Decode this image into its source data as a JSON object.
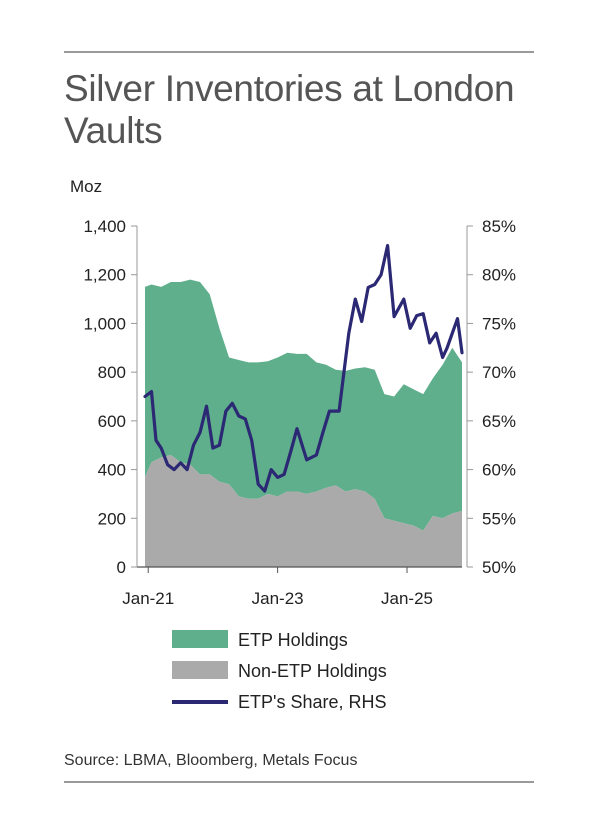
{
  "title": "Silver Inventories at London Vaults",
  "source": "Source: LBMA, Bloomberg, Metals Focus",
  "colors": {
    "etp": "#5fae8c",
    "non_etp": "#aaaaaa",
    "share": "#2b2874"
  },
  "chart_data": {
    "type": "area",
    "left_axis_unit": "Moz",
    "ylim_left": [
      0,
      1400
    ],
    "ylim_right": [
      0.5,
      0.85
    ],
    "y_ticks_left": [
      "0",
      "200",
      "400",
      "600",
      "800",
      "1,000",
      "1,200",
      "1,400"
    ],
    "y_ticks_right": [
      "50%",
      "55%",
      "60%",
      "65%",
      "70%",
      "75%",
      "80%",
      "85%"
    ],
    "x_ticks": [
      "Jan-21",
      "Jan-23",
      "Jan-25"
    ],
    "x_tick_positions": [
      2021.0,
      2023.0,
      2025.0
    ],
    "xlim": [
      2020.95,
      2025.85
    ],
    "grid": false,
    "legend_position": "bottom",
    "series": [
      {
        "name": "ETP Holdings",
        "kind": "stacked-area",
        "x": [
          2020.95,
          2021.05,
          2021.2,
          2021.35,
          2021.5,
          2021.65,
          2021.8,
          2021.95,
          2022.1,
          2022.25,
          2022.4,
          2022.55,
          2022.7,
          2022.85,
          2023.0,
          2023.15,
          2023.3,
          2023.45,
          2023.6,
          2023.75,
          2023.9,
          2024.05,
          2024.2,
          2024.35,
          2024.5,
          2024.65,
          2024.8,
          2024.95,
          2025.1,
          2025.25,
          2025.4,
          2025.55,
          2025.7,
          2025.85
        ],
        "values": [
          780,
          730,
          700,
          710,
          740,
          760,
          790,
          740,
          630,
          520,
          560,
          560,
          560,
          545,
          570,
          570,
          565,
          575,
          530,
          505,
          475,
          495,
          495,
          510,
          530,
          510,
          510,
          570,
          560,
          560,
          565,
          630,
          680,
          610
        ]
      },
      {
        "name": "Non-ETP Holdings",
        "kind": "stacked-area",
        "x": [
          2020.95,
          2021.05,
          2021.2,
          2021.35,
          2021.5,
          2021.65,
          2021.8,
          2021.95,
          2022.1,
          2022.25,
          2022.4,
          2022.55,
          2022.7,
          2022.85,
          2023.0,
          2023.15,
          2023.3,
          2023.45,
          2023.6,
          2023.75,
          2023.9,
          2024.05,
          2024.2,
          2024.35,
          2024.5,
          2024.65,
          2024.8,
          2024.95,
          2025.1,
          2025.25,
          2025.4,
          2025.55,
          2025.7,
          2025.85
        ],
        "values": [
          370,
          430,
          450,
          460,
          430,
          420,
          380,
          380,
          350,
          340,
          290,
          280,
          280,
          300,
          290,
          310,
          310,
          300,
          310,
          325,
          335,
          310,
          320,
          310,
          280,
          200,
          190,
          180,
          170,
          150,
          210,
          200,
          220,
          230
        ]
      },
      {
        "name": "ETP's Share, RHS",
        "kind": "line",
        "axis": "right",
        "x": [
          2020.95,
          2021.05,
          2021.12,
          2021.2,
          2021.3,
          2021.4,
          2021.5,
          2021.6,
          2021.7,
          2021.8,
          2021.9,
          2022.0,
          2022.1,
          2022.2,
          2022.3,
          2022.4,
          2022.5,
          2022.6,
          2022.7,
          2022.8,
          2022.9,
          2023.0,
          2023.1,
          2023.2,
          2023.3,
          2023.45,
          2023.6,
          2023.7,
          2023.8,
          2023.95,
          2024.1,
          2024.2,
          2024.3,
          2024.4,
          2024.5,
          2024.6,
          2024.7,
          2024.8,
          2024.95,
          2025.05,
          2025.15,
          2025.25,
          2025.35,
          2025.45,
          2025.55,
          2025.62,
          2025.7,
          2025.78,
          2025.85
        ],
        "values": [
          0.675,
          0.68,
          0.63,
          0.622,
          0.605,
          0.6,
          0.607,
          0.6,
          0.625,
          0.638,
          0.665,
          0.622,
          0.625,
          0.66,
          0.668,
          0.655,
          0.652,
          0.63,
          0.585,
          0.578,
          0.6,
          0.592,
          0.595,
          0.618,
          0.642,
          0.61,
          0.615,
          0.638,
          0.66,
          0.66,
          0.74,
          0.775,
          0.752,
          0.787,
          0.79,
          0.8,
          0.83,
          0.757,
          0.775,
          0.745,
          0.758,
          0.76,
          0.73,
          0.74,
          0.715,
          0.725,
          0.74,
          0.755,
          0.72
        ]
      }
    ]
  }
}
